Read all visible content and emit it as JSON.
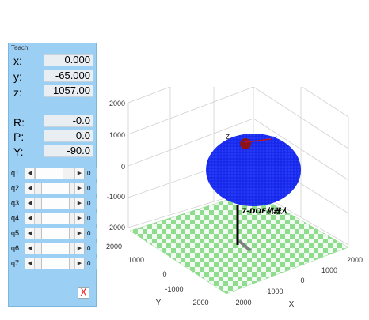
{
  "teach_panel": {
    "title": "Teach",
    "position": [
      {
        "label": "x:",
        "value": "0.000"
      },
      {
        "label": "y:",
        "value": "-65.000"
      },
      {
        "label": "z:",
        "value": "1057.00"
      }
    ],
    "orientation": [
      {
        "label": "R:",
        "value": "-0.0"
      },
      {
        "label": "P:",
        "value": "0.0"
      },
      {
        "label": "Y:",
        "value": "-90.0"
      }
    ],
    "joints": [
      {
        "label": "q1",
        "value": "0"
      },
      {
        "label": "q2",
        "value": "0"
      },
      {
        "label": "q3",
        "value": "0"
      },
      {
        "label": "q4",
        "value": "0"
      },
      {
        "label": "q5",
        "value": "0"
      },
      {
        "label": "q6",
        "value": "0"
      },
      {
        "label": "q7",
        "value": "0"
      }
    ],
    "close_label": "X"
  },
  "plot": {
    "z_ticks": [
      "2000",
      "1000",
      "0",
      "-1000",
      "-2000"
    ],
    "y_ticks": [
      "2000",
      "1000",
      "0",
      "-1000",
      "-2000"
    ],
    "x_ticks": [
      "-2000",
      "-1000",
      "0",
      "1000",
      "2000"
    ],
    "y_axis_label": "Y",
    "x_axis_label": "X",
    "robot_label": "7-DOF机器人",
    "frame_x_label": "X",
    "frame_z_label": "Z",
    "colors": {
      "workspace_cloud": "#1a2df0",
      "floor_tile_a": "#8fdc8f",
      "floor_tile_b": "#f2fbf2",
      "robot_link": "#000000",
      "frame_x_axis": "#c0141a"
    }
  }
}
